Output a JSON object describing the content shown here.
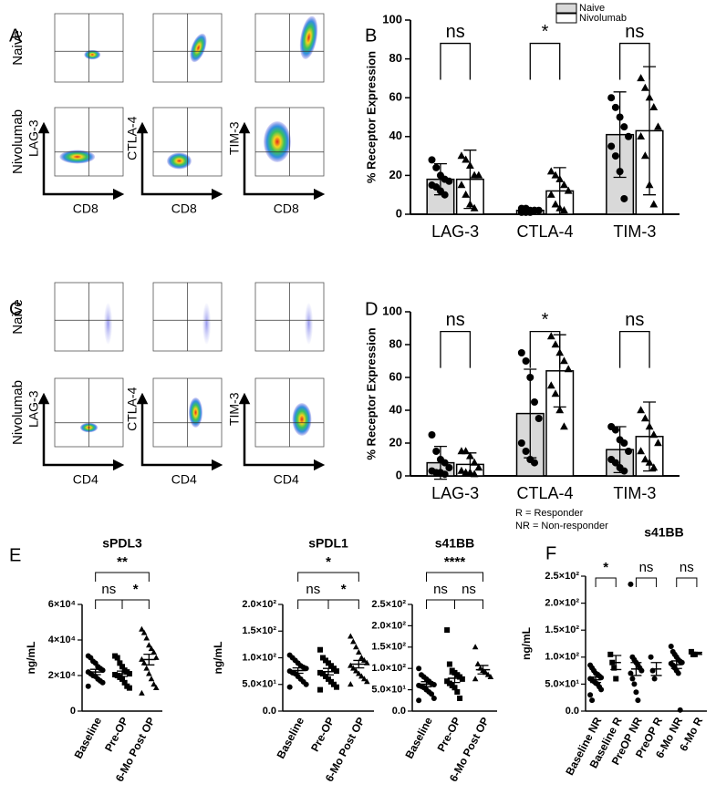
{
  "panel_labels": [
    "A",
    "B",
    "C",
    "D",
    "E",
    "F"
  ],
  "flow_panels": [
    {
      "rows": [
        "Naive",
        "Nivolumab"
      ],
      "markers": [
        "LAG-3",
        "CTLA-4",
        "TIM-3"
      ],
      "x_marker": "CD8"
    },
    {
      "rows": [
        "Naive",
        "Nivolumab"
      ],
      "markers": [
        "LAG-3",
        "CTLA-4",
        "TIM-3"
      ],
      "x_marker": "CD4"
    }
  ],
  "chart_data": [
    {
      "type": "bar",
      "ylabel": "% Receptor Expression",
      "categories": [
        "LAG-3",
        "CTLA-4",
        "TIM-3"
      ],
      "ylim": [
        0,
        100
      ],
      "yticks": [
        0,
        20,
        40,
        60,
        80,
        100
      ],
      "legend": "top-right",
      "markers": [
        "circle",
        "triangle"
      ],
      "series": [
        {
          "name": "Naive",
          "color": "#d9d9d9",
          "values": [
            18,
            2,
            41
          ],
          "errors": [
            8,
            1,
            22
          ],
          "points": [
            [
              28,
              24,
              20,
              18,
              17,
              15,
              14,
              12,
              10
            ],
            [
              3,
              3,
              2,
              2,
              2,
              1,
              1,
              1,
              2
            ],
            [
              60,
              55,
              50,
              45,
              40,
              35,
              30,
              22,
              8
            ]
          ]
        },
        {
          "name": "Nivolumab",
          "color": "#ffffff",
          "values": [
            18,
            12,
            43
          ],
          "errors": [
            15,
            12,
            33
          ],
          "points": [
            [
              30,
              28,
              25,
              20,
              20,
              15,
              10,
              5,
              3
            ],
            [
              22,
              20,
              18,
              15,
              12,
              10,
              5,
              3,
              2
            ],
            [
              70,
              65,
              60,
              55,
              45,
              40,
              30,
              15,
              5
            ]
          ]
        }
      ],
      "comparisons": [
        {
          "category": 0,
          "label": "ns"
        },
        {
          "category": 1,
          "label": "*"
        },
        {
          "category": 2,
          "label": "ns"
        }
      ]
    },
    {
      "type": "bar",
      "ylabel": "% Receptor Expression",
      "categories": [
        "LAG-3",
        "CTLA-4",
        "TIM-3"
      ],
      "ylim": [
        0,
        100
      ],
      "yticks": [
        0,
        20,
        40,
        60,
        80,
        100
      ],
      "markers": [
        "circle",
        "triangle"
      ],
      "series": [
        {
          "name": "Naive",
          "color": "#d9d9d9",
          "values": [
            8,
            38,
            16
          ],
          "errors": [
            10,
            27,
            14
          ],
          "points": [
            [
              25,
              15,
              10,
              8,
              5,
              3,
              2,
              2,
              1
            ],
            [
              75,
              70,
              60,
              45,
              35,
              20,
              15,
              10,
              8
            ],
            [
              30,
              28,
              22,
              20,
              15,
              10,
              8,
              5,
              3
            ]
          ]
        },
        {
          "name": "Nivolumab",
          "color": "#ffffff",
          "values": [
            7,
            64,
            24
          ],
          "errors": [
            7,
            22,
            21
          ],
          "points": [
            [
              15,
              15,
              12,
              8,
              5,
              3,
              2,
              2,
              1
            ],
            [
              85,
              80,
              75,
              70,
              65,
              55,
              50,
              40,
              30
            ],
            [
              40,
              35,
              30,
              25,
              20,
              15,
              10,
              8,
              5
            ]
          ]
        }
      ],
      "comparisons": [
        {
          "category": 0,
          "label": "ns"
        },
        {
          "category": 1,
          "label": "*"
        },
        {
          "category": 2,
          "label": "ns"
        }
      ]
    },
    {
      "type": "dot",
      "title": "sPDL3",
      "ylabel": "ng/mL",
      "categories": [
        "Baseline",
        "Pre-OP",
        "6-Mo Post OP"
      ],
      "markers": [
        "circle",
        "square",
        "triangle"
      ],
      "ylim": [
        0,
        60000
      ],
      "yticks": [
        0,
        {
          "value": 20000,
          "label": "2×10⁴"
        },
        {
          "value": 40000,
          "label": "4×10⁴"
        },
        {
          "value": 60000,
          "label": "6×10⁴"
        }
      ],
      "groups": [
        {
          "values": [
            31000,
            30000,
            28000,
            27000,
            25000,
            24000,
            23000,
            22000,
            21000,
            20000,
            19500,
            18000,
            17000,
            16000,
            14000
          ],
          "mean": 22000,
          "sem": 1500
        },
        {
          "values": [
            31000,
            30000,
            27000,
            25000,
            23000,
            22000,
            21000,
            20500,
            20000,
            19000,
            18000,
            16000,
            14000,
            13000
          ],
          "mean": 21000,
          "sem": 1500
        },
        {
          "values": [
            46000,
            44000,
            41000,
            37000,
            35000,
            33000,
            30000,
            29000,
            27000,
            24000,
            21000,
            18000,
            15000,
            13000,
            10000
          ],
          "mean": 29000,
          "sem": 3000
        }
      ],
      "comparisons": [
        {
          "from": 0,
          "to": 2,
          "label": "**"
        },
        {
          "from": 0,
          "to": 1,
          "label": "ns"
        },
        {
          "from": 1,
          "to": 2,
          "label": "*"
        }
      ]
    },
    {
      "type": "dot",
      "title": "sPDL1",
      "ylabel": "ng/mL",
      "categories": [
        "Baseline",
        "Pre-OP",
        "6-Mo Post OP"
      ],
      "markers": [
        "circle",
        "square",
        "triangle"
      ],
      "ylim": [
        0,
        200
      ],
      "yticks": [
        {
          "value": 0,
          "label": "0.0"
        },
        {
          "value": 50,
          "label": "5.0×10¹"
        },
        {
          "value": 100,
          "label": "1.0×10²"
        },
        {
          "value": 150,
          "label": "1.5×10²"
        },
        {
          "value": 200,
          "label": "2.0×10²"
        }
      ],
      "groups": [
        {
          "values": [
            105,
            100,
            95,
            90,
            85,
            82,
            80,
            75,
            72,
            70,
            65,
            60,
            55,
            50,
            45
          ],
          "mean": 76,
          "sem": 5
        },
        {
          "values": [
            115,
            100,
            95,
            90,
            85,
            80,
            75,
            72,
            70,
            65,
            60,
            55,
            50,
            45,
            40
          ],
          "mean": 74,
          "sem": 6
        },
        {
          "values": [
            140,
            130,
            120,
            110,
            100,
            95,
            90,
            85,
            80,
            75,
            70,
            65,
            60,
            55,
            50
          ],
          "mean": 88,
          "sem": 7
        }
      ],
      "comparisons": [
        {
          "from": 0,
          "to": 2,
          "label": "*"
        },
        {
          "from": 0,
          "to": 1,
          "label": "ns"
        },
        {
          "from": 1,
          "to": 2,
          "label": "*"
        }
      ]
    },
    {
      "type": "dot",
      "title": "s41BB",
      "categories": [
        "Baseline",
        "Pre-OP",
        "6-Mo Post OP"
      ],
      "markers": [
        "circle",
        "square",
        "triangle"
      ],
      "ylim": [
        0,
        250
      ],
      "yticks": [
        {
          "value": 0,
          "label": "0.0"
        },
        {
          "value": 50,
          "label": "5.0×10¹"
        },
        {
          "value": 100,
          "label": "1.0×10²"
        },
        {
          "value": 150,
          "label": "1.5×10²"
        },
        {
          "value": 200,
          "label": "2.0×10²"
        },
        {
          "value": 250,
          "label": "2.5×10²"
        }
      ],
      "groups": [
        {
          "values": [
            100,
            85,
            80,
            75,
            70,
            65,
            62,
            60,
            58,
            55,
            50,
            45,
            40,
            30,
            25
          ],
          "mean": 63,
          "sem": 6
        },
        {
          "values": [
            190,
            110,
            95,
            90,
            85,
            80,
            75,
            70,
            65,
            60,
            55,
            45,
            30
          ],
          "mean": 77,
          "sem": 10
        },
        {
          "values": [
            150,
            110,
            100,
            95,
            90,
            85,
            80,
            75
          ],
          "mean": 97,
          "sem": 10
        }
      ],
      "comparisons": [
        {
          "from": 0,
          "to": 2,
          "label": "****"
        },
        {
          "from": 0,
          "to": 1,
          "label": "ns"
        },
        {
          "from": 1,
          "to": 2,
          "label": "ns"
        }
      ]
    },
    {
      "type": "dot",
      "title": "s41BB",
      "ylabel": "ng/mL",
      "notes": [
        "R = Responder",
        "NR = Non-responder"
      ],
      "categories": [
        "Baseline NR",
        "Baseline R",
        "PreOP NR",
        "PreOP R",
        "6-Mo NR",
        "6-Mo R"
      ],
      "markers": [
        "circle",
        "square",
        "circle",
        "circle",
        "circle",
        "square"
      ],
      "ylim": [
        0,
        250
      ],
      "yticks": [
        {
          "value": 0,
          "label": "0.0"
        },
        {
          "value": 50,
          "label": "5.0×10¹"
        },
        {
          "value": 100,
          "label": "1.0×10²"
        },
        {
          "value": 150,
          "label": "1.5×10²"
        },
        {
          "value": 200,
          "label": "2.0×10²"
        },
        {
          "value": 250,
          "label": "2.5×10²"
        }
      ],
      "groups": [
        {
          "values": [
            85,
            80,
            75,
            70,
            68,
            65,
            62,
            60,
            58,
            55,
            52,
            50,
            45,
            40,
            30,
            20
          ],
          "mean": 58,
          "sem": 5
        },
        {
          "values": [
            105,
            90,
            80,
            60
          ],
          "mean": 90,
          "sem": 13
        },
        {
          "values": [
            235,
            100,
            95,
            90,
            85,
            80,
            75,
            70,
            60,
            50,
            35,
            20
          ],
          "mean": 78,
          "sem": 12
        },
        {
          "values": [
            100,
            75,
            60
          ],
          "mean": 78,
          "sem": 12
        },
        {
          "values": [
            120,
            110,
            105,
            100,
            95,
            92,
            90,
            88,
            85,
            80,
            75,
            70,
            2
          ],
          "mean": 86,
          "sem": 7
        },
        {
          "values": [
            110,
            105,
            105
          ],
          "mean": 107,
          "sem": 2
        }
      ],
      "comparisons": [
        {
          "from": 0,
          "to": 1,
          "label": "*"
        },
        {
          "from": 2,
          "to": 3,
          "label": "ns"
        },
        {
          "from": 4,
          "to": 5,
          "label": "ns"
        }
      ]
    }
  ]
}
